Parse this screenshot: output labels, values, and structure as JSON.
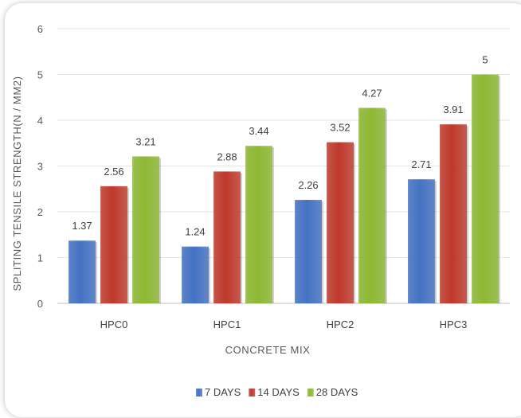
{
  "chart_data": {
    "type": "bar",
    "title": "",
    "xlabel": "CONCRETE MIX",
    "ylabel": "SPLITING TENSILE STRENGTH(N / MM2)",
    "categories": [
      "HPC0",
      "HPC1",
      "HPC2",
      "HPC3"
    ],
    "series": [
      {
        "name": "7 DAYS",
        "values": [
          1.37,
          1.24,
          2.26,
          2.71
        ],
        "color": "#4472C4"
      },
      {
        "name": "14 DAYS",
        "values": [
          2.56,
          2.88,
          3.52,
          3.91
        ],
        "color": "#C0392B"
      },
      {
        "name": "28 DAYS",
        "values": [
          3.21,
          3.44,
          4.27,
          5
        ],
        "color": "#8DB932"
      }
    ],
    "ylim": [
      0,
      6
    ],
    "yticks": [
      0,
      1,
      2,
      3,
      4,
      5,
      6
    ],
    "grid": true,
    "legend": "bottom",
    "data_labels": true
  }
}
